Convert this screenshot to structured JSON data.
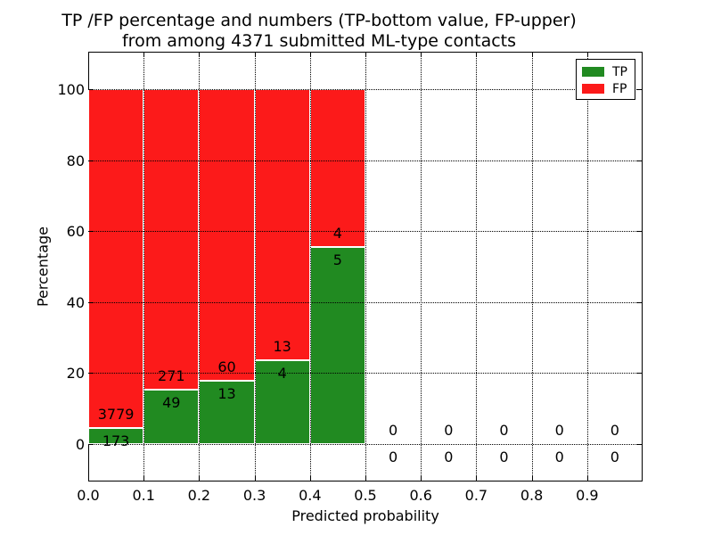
{
  "figure": {
    "title_line1": "TP /FP percentage and numbers (TP-bottom value, FP-upper)",
    "title_line2": "from among 4371 submitted ML-type contacts"
  },
  "chart_data": {
    "type": "bar",
    "subtype": "stacked-percentage-histogram",
    "title": "TP /FP percentage and numbers (TP-bottom value, FP-upper) from among 4371 submitted ML-type contacts",
    "title_line1": "TP /FP percentage and numbers (TP-bottom value, FP-upper)",
    "title_line2": "from among 4371 submitted ML-type contacts",
    "total_contacts": 4371,
    "xlabel": "Predicted probability",
    "ylabel": "Percentage",
    "xlim": [
      0.0,
      1.0
    ],
    "ylim": [
      -10.6,
      110.6
    ],
    "x_tick_values": [
      0.0,
      0.1,
      0.2,
      0.3,
      0.4,
      0.5,
      0.6,
      0.7,
      0.8,
      0.9
    ],
    "x_tick_labels": [
      "0.0",
      "0.1",
      "0.2",
      "0.3",
      "0.4",
      "0.5",
      "0.6",
      "0.7",
      "0.8",
      "0.9"
    ],
    "y_tick_values": [
      0,
      20,
      40,
      60,
      80,
      100
    ],
    "y_tick_labels": [
      "0",
      "20",
      "40",
      "60",
      "80",
      "100"
    ],
    "grid": "dotted-black-both-axes",
    "colors": {
      "tp": "#218a21",
      "fp": "#fc1a1a",
      "bar_edge": "#ffffff",
      "axes": "#000000"
    },
    "legend": {
      "position": "upper-right",
      "entries": [
        {
          "label": "TP",
          "color": "#218a21"
        },
        {
          "label": "FP",
          "color": "#fc1a1a"
        }
      ]
    },
    "bin_width": 0.1,
    "bins": [
      {
        "x_start": 0.0,
        "x_end": 0.1,
        "tp_count": 173,
        "fp_count": 3779,
        "tp_pct": 4.38,
        "fp_pct": 95.62
      },
      {
        "x_start": 0.1,
        "x_end": 0.2,
        "tp_count": 49,
        "fp_count": 271,
        "tp_pct": 15.31,
        "fp_pct": 84.69
      },
      {
        "x_start": 0.2,
        "x_end": 0.3,
        "tp_count": 13,
        "fp_count": 60,
        "tp_pct": 17.81,
        "fp_pct": 82.19
      },
      {
        "x_start": 0.3,
        "x_end": 0.4,
        "tp_count": 4,
        "fp_count": 13,
        "tp_pct": 23.53,
        "fp_pct": 76.47
      },
      {
        "x_start": 0.4,
        "x_end": 0.5,
        "tp_count": 5,
        "fp_count": 4,
        "tp_pct": 55.56,
        "fp_pct": 44.44
      },
      {
        "x_start": 0.5,
        "x_end": 0.6,
        "tp_count": 0,
        "fp_count": 0,
        "tp_pct": 0,
        "fp_pct": 0
      },
      {
        "x_start": 0.6,
        "x_end": 0.7,
        "tp_count": 0,
        "fp_count": 0,
        "tp_pct": 0,
        "fp_pct": 0
      },
      {
        "x_start": 0.7,
        "x_end": 0.8,
        "tp_count": 0,
        "fp_count": 0,
        "tp_pct": 0,
        "fp_pct": 0
      },
      {
        "x_start": 0.8,
        "x_end": 0.9,
        "tp_count": 0,
        "fp_count": 0,
        "tp_pct": 0,
        "fp_pct": 0
      },
      {
        "x_start": 0.9,
        "x_end": 1.0,
        "tp_count": 0,
        "fp_count": 0,
        "tp_pct": 0,
        "fp_pct": 0
      }
    ]
  }
}
